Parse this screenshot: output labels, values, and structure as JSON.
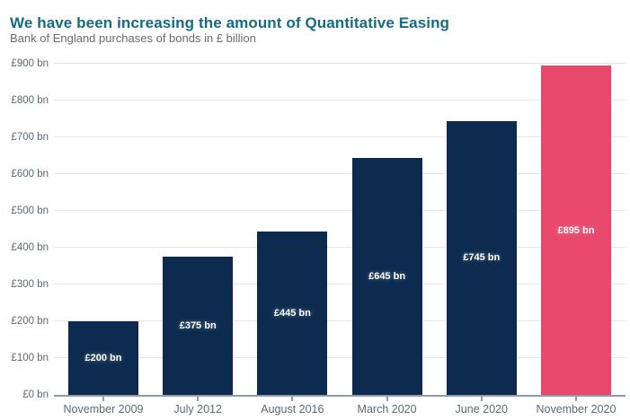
{
  "header": {
    "title": "We have been increasing the amount of Quantitative Easing",
    "subtitle": "Bank of England purchases of bonds in £ billion"
  },
  "chart_data": {
    "type": "bar",
    "title": "We have been increasing the amount of Quantitative Easing",
    "subtitle": "Bank of England purchases of bonds in £ billion",
    "categories": [
      "November 2009",
      "July 2012",
      "August 2016",
      "March 2020",
      "June 2020",
      "November 2020"
    ],
    "values": [
      200,
      375,
      445,
      645,
      745,
      895
    ],
    "bar_labels": [
      "£200 bn",
      "£375 bn",
      "£445 bn",
      "£645 bn",
      "£745 bn",
      "£895 bn"
    ],
    "xlabel": "",
    "ylabel": "£ billion",
    "ylim": [
      0,
      900
    ],
    "y_ticks": [
      0,
      100,
      200,
      300,
      400,
      500,
      600,
      700,
      800,
      900
    ],
    "y_tick_labels": [
      "£0 bn",
      "£100 bn",
      "£200 bn",
      "£300 bn",
      "£400 bn",
      "£500 bn",
      "£600 bn",
      "£700 bn",
      "£800 bn",
      "£900 bn"
    ],
    "grid": true,
    "legend": "none",
    "highlight_index": 5,
    "colors": {
      "default_bar": "#0c2b4e",
      "highlight_bar": "#e8486b",
      "title_text": "#156b80",
      "subtitle_text": "#6a6a6a",
      "axis_label_text": "#5b6a76",
      "axis_line": "#8e9baa",
      "gridline": "#e6e6e6"
    }
  }
}
